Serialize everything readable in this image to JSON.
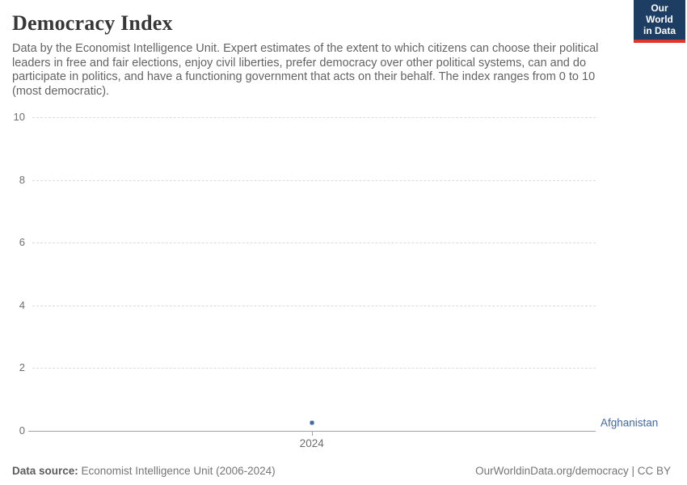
{
  "header": {
    "title": "Democracy Index",
    "subtitle": "Data by the Economist Intelligence Unit. Expert estimates of the extent to which citizens can choose their political leaders in free and fair elections, enjoy civil liberties, prefer democracy over other political systems, can and do participate in politics, and have a functioning government that acts on their behalf. The index ranges from 0 to 10 (most democratic).",
    "logo": {
      "line1": "Our World",
      "line2": "in Data",
      "bg_color": "#1d3d63",
      "accent_color": "#e0342c"
    }
  },
  "chart_data": {
    "type": "scatter",
    "title": "Democracy Index",
    "x": [
      2024
    ],
    "xtick_labels": [
      "2024"
    ],
    "series": [
      {
        "name": "Afghanistan",
        "values": [
          0.25
        ],
        "color": "#4268a5"
      }
    ],
    "ylim": [
      0,
      10
    ],
    "yticks": [
      0,
      2,
      4,
      6,
      8,
      10
    ],
    "grid": "horizontal-dashed",
    "legend_position": "right-entity-label",
    "entity_label": "Afghanistan",
    "entity_label_color": "#4268a5"
  },
  "footer": {
    "source_label": "Data source:",
    "source_text": " Economist Intelligence Unit (2006-2024)",
    "credit": "OurWorldinData.org/democracy | CC BY"
  },
  "colors": {
    "accent_blue": "#4268a5",
    "grid_dashed": "#dcdcdc",
    "axis_line": "#a3a3a3",
    "tick_text": "#6e6e6e",
    "subtitle_text": "#636363",
    "title_text": "#373737"
  }
}
